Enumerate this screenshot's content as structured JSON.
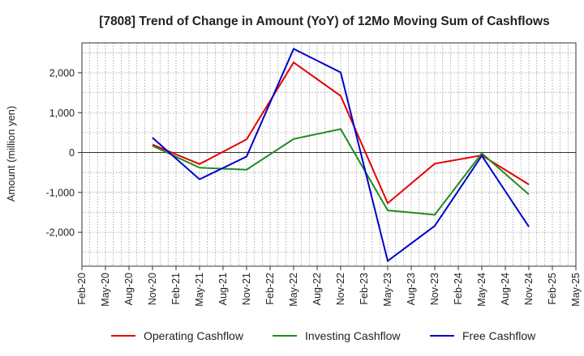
{
  "chart_data": {
    "type": "line",
    "title": "[7808]  Trend of Change in Amount (YoY) of 12Mo Moving Sum of Cashflows",
    "xlabel": "",
    "ylabel": "Amount (million yen)",
    "ylim": [
      -2850,
      2750
    ],
    "yticks": [
      -2000,
      -1000,
      0,
      1000,
      2000
    ],
    "ytick_labels": [
      "-2,000",
      "-1,000",
      "0",
      "1,000",
      "2,000"
    ],
    "x_ticks": [
      "Feb-20",
      "May-20",
      "Aug-20",
      "Nov-20",
      "Feb-21",
      "May-21",
      "Aug-21",
      "Nov-21",
      "Feb-22",
      "May-22",
      "Aug-22",
      "Nov-22",
      "Feb-23",
      "May-23",
      "Aug-23",
      "Nov-23",
      "Feb-24",
      "May-24",
      "Aug-24",
      "Nov-24",
      "Feb-25",
      "May-25"
    ],
    "x": [
      "Nov-20",
      "Feb-21",
      "May-21",
      "Aug-21",
      "Nov-21",
      "Feb-22",
      "May-22",
      "Aug-22",
      "Nov-22",
      "Feb-23",
      "May-23",
      "Aug-23",
      "Nov-23",
      "Feb-24",
      "May-24",
      "Aug-24",
      "Nov-24"
    ],
    "series": [
      {
        "name": "Operating Cashflow",
        "color": "#e60000",
        "values": [
          200,
          null,
          -290,
          null,
          330,
          null,
          2260,
          null,
          1420,
          null,
          -1270,
          null,
          -280,
          null,
          -70,
          null,
          -800
        ]
      },
      {
        "name": "Investing Cashflow",
        "color": "#228b22",
        "values": [
          170,
          null,
          -380,
          null,
          -430,
          null,
          340,
          null,
          590,
          null,
          -1450,
          null,
          -1560,
          null,
          -20,
          null,
          -1050
        ]
      },
      {
        "name": "Free Cashflow",
        "color": "#0000cc",
        "values": [
          370,
          null,
          -670,
          null,
          -100,
          null,
          2600,
          null,
          2010,
          null,
          -2720,
          null,
          -1840,
          null,
          -80,
          null,
          -1860
        ]
      }
    ],
    "grid": true,
    "legend_position": "bottom"
  }
}
